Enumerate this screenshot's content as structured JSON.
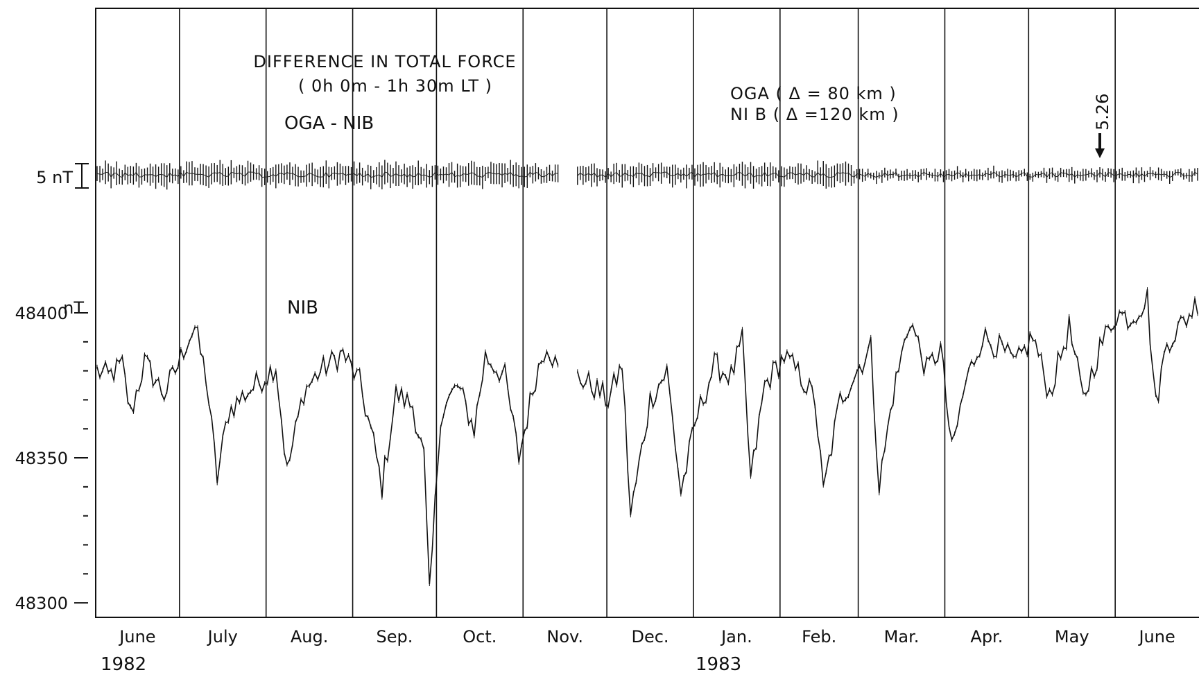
{
  "chart_data": {
    "type": "line",
    "title": "DIFFERENCE IN TOTAL FORCE",
    "subtitle": "( 0h 0m - 1h 30m LT )",
    "panel_labels": {
      "difference": "OGA - NIB",
      "series": "NIB"
    },
    "station_notes": [
      "OGA ( Δ = 80 km )",
      "NI B ( Δ =120 km )"
    ],
    "scale_bar_label": "5 nT",
    "marker": {
      "label": "5.26",
      "date": "1983-05-26"
    },
    "y_unit": "nT",
    "ylim": [
      48295,
      48505
    ],
    "yticks": [
      "48300",
      "48350",
      "48400"
    ],
    "months": [
      "June",
      "July",
      "Aug.",
      "Sep.",
      "Oct.",
      "Nov.",
      "Dec.",
      "Jan.",
      "Feb.",
      "Mar.",
      "Apr.",
      "May",
      "June"
    ],
    "years": [
      "1982",
      "1983"
    ],
    "x_range": [
      "1982-06-01",
      "1983-06-30"
    ],
    "data_gaps": [
      [
        "1982-11-14",
        "1982-11-19"
      ]
    ],
    "nib_anchors": [
      [
        "1982-06-01",
        48380
      ],
      [
        "1982-06-05",
        48378
      ],
      [
        "1982-06-10",
        48382
      ],
      [
        "1982-06-13",
        48365
      ],
      [
        "1982-06-18",
        48383
      ],
      [
        "1982-06-25",
        48372
      ],
      [
        "1982-06-30",
        48382
      ],
      [
        "1982-07-03",
        48390
      ],
      [
        "1982-07-06",
        48395
      ],
      [
        "1982-07-10",
        48378
      ],
      [
        "1982-07-14",
        48343
      ],
      [
        "1982-07-18",
        48366
      ],
      [
        "1982-07-24",
        48372
      ],
      [
        "1982-07-31",
        48378
      ],
      [
        "1982-08-04",
        48382
      ],
      [
        "1982-08-08",
        48345
      ],
      [
        "1982-08-14",
        48373
      ],
      [
        "1982-08-20",
        48380
      ],
      [
        "1982-08-28",
        48386
      ],
      [
        "1982-09-03",
        48376
      ],
      [
        "1982-09-08",
        48355
      ],
      [
        "1982-09-11",
        48340
      ],
      [
        "1982-09-16",
        48372
      ],
      [
        "1982-09-22",
        48368
      ],
      [
        "1982-09-26",
        48350
      ],
      [
        "1982-09-28",
        48302
      ],
      [
        "1982-10-02",
        48365
      ],
      [
        "1982-10-08",
        48375
      ],
      [
        "1982-10-14",
        48360
      ],
      [
        "1982-10-18",
        48385
      ],
      [
        "1982-10-25",
        48378
      ],
      [
        "1982-10-30",
        48350
      ],
      [
        "1982-11-05",
        48378
      ],
      [
        "1982-11-09",
        48390
      ],
      [
        "1982-11-13",
        48380
      ],
      [
        "1982-11-20",
        48378
      ],
      [
        "1982-11-25",
        48375
      ],
      [
        "1982-12-01",
        48370
      ],
      [
        "1982-12-06",
        48382
      ],
      [
        "1982-12-09",
        48330
      ],
      [
        "1982-12-16",
        48370
      ],
      [
        "1982-12-22",
        48380
      ],
      [
        "1982-12-27",
        48338
      ],
      [
        "1983-01-02",
        48365
      ],
      [
        "1983-01-08",
        48382
      ],
      [
        "1983-01-14",
        48378
      ],
      [
        "1983-01-18",
        48390
      ],
      [
        "1983-01-21",
        48342
      ],
      [
        "1983-01-26",
        48375
      ],
      [
        "1983-02-02",
        48385
      ],
      [
        "1983-02-08",
        48378
      ],
      [
        "1983-02-13",
        48370
      ],
      [
        "1983-02-16",
        48338
      ],
      [
        "1983-02-22",
        48370
      ],
      [
        "1983-02-28",
        48380
      ],
      [
        "1983-03-05",
        48388
      ],
      [
        "1983-03-08",
        48340
      ],
      [
        "1983-03-13",
        48372
      ],
      [
        "1983-03-19",
        48398
      ],
      [
        "1983-03-25",
        48380
      ],
      [
        "1983-03-30",
        48388
      ],
      [
        "1983-04-03",
        48352
      ],
      [
        "1983-04-08",
        48376
      ],
      [
        "1983-04-14",
        48392
      ],
      [
        "1983-04-20",
        48388
      ],
      [
        "1983-04-26",
        48382
      ],
      [
        "1983-05-02",
        48392
      ],
      [
        "1983-05-08",
        48372
      ],
      [
        "1983-05-15",
        48395
      ],
      [
        "1983-05-20",
        48370
      ],
      [
        "1983-05-26",
        48388
      ],
      [
        "1983-06-01",
        48400
      ],
      [
        "1983-06-06",
        48398
      ],
      [
        "1983-06-12",
        48405
      ],
      [
        "1983-06-15",
        48368
      ],
      [
        "1983-06-19",
        48390
      ],
      [
        "1983-06-26",
        48398
      ],
      [
        "1983-06-30",
        48404
      ]
    ]
  }
}
